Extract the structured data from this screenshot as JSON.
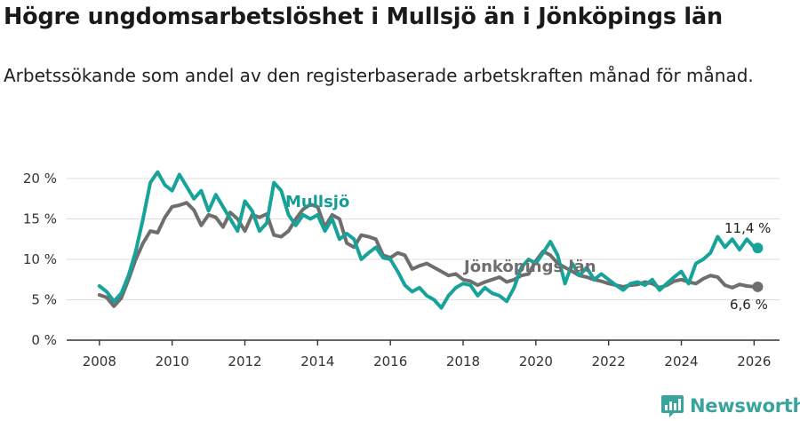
{
  "title": "Högre ungdomsarbetslöshet i Mullsjö än i Jönköpings län",
  "subtitle": "Arbetssökande som andel av den registerbaserade arbetskraften månad för månad.",
  "brand": {
    "name": "Newsworthy"
  },
  "colors": {
    "mullsjo": "#17a399",
    "jonkoping": "#6e6e6e",
    "brand": "#3aa49c"
  },
  "chart_data": {
    "type": "line",
    "title": "Högre ungdomsarbetslöshet i Mullsjö än i Jönköpings län",
    "xlabel": "",
    "ylabel": "",
    "xlim": [
      2007.1,
      2026.7
    ],
    "ylim": [
      0,
      20
    ],
    "grid": true,
    "x_ticks": [
      2008,
      2010,
      2012,
      2014,
      2016,
      2018,
      2020,
      2022,
      2024,
      2026
    ],
    "x_tick_labels": [
      "2008",
      "2010",
      "2012",
      "2014",
      "2016",
      "2018",
      "2020",
      "2022",
      "2024",
      "2026"
    ],
    "y_ticks": [
      0,
      5,
      10,
      15,
      20
    ],
    "y_tick_labels": [
      "0 %",
      "5 %",
      "10 %",
      "15 %",
      "20 %"
    ],
    "series": [
      {
        "name": "Jönköpings län",
        "label": "Jönköpings län",
        "color": "#6e6e6e",
        "end_label": "6,6 %",
        "points": [
          [
            2008.0,
            5.6
          ],
          [
            2008.2,
            5.3
          ],
          [
            2008.4,
            4.2
          ],
          [
            2008.6,
            5.2
          ],
          [
            2008.8,
            7.5
          ],
          [
            2009.0,
            10.0
          ],
          [
            2009.2,
            12.0
          ],
          [
            2009.4,
            13.5
          ],
          [
            2009.6,
            13.3
          ],
          [
            2009.8,
            15.2
          ],
          [
            2010.0,
            16.5
          ],
          [
            2010.2,
            16.7
          ],
          [
            2010.4,
            17.0
          ],
          [
            2010.6,
            16.1
          ],
          [
            2010.8,
            14.2
          ],
          [
            2011.0,
            15.5
          ],
          [
            2011.2,
            15.2
          ],
          [
            2011.4,
            14.0
          ],
          [
            2011.6,
            15.8
          ],
          [
            2011.8,
            15.0
          ],
          [
            2012.0,
            13.5
          ],
          [
            2012.2,
            15.5
          ],
          [
            2012.4,
            15.2
          ],
          [
            2012.6,
            15.6
          ],
          [
            2012.8,
            13.0
          ],
          [
            2013.0,
            12.8
          ],
          [
            2013.2,
            13.5
          ],
          [
            2013.4,
            15.0
          ],
          [
            2013.6,
            16.2
          ],
          [
            2013.8,
            16.8
          ],
          [
            2014.0,
            16.5
          ],
          [
            2014.2,
            14.0
          ],
          [
            2014.4,
            15.5
          ],
          [
            2014.6,
            15.0
          ],
          [
            2014.8,
            12.0
          ],
          [
            2015.0,
            11.5
          ],
          [
            2015.2,
            13.0
          ],
          [
            2015.4,
            12.8
          ],
          [
            2015.6,
            12.5
          ],
          [
            2015.8,
            10.5
          ],
          [
            2016.0,
            10.2
          ],
          [
            2016.2,
            10.8
          ],
          [
            2016.4,
            10.5
          ],
          [
            2016.6,
            8.8
          ],
          [
            2016.8,
            9.2
          ],
          [
            2017.0,
            9.5
          ],
          [
            2017.2,
            9.0
          ],
          [
            2017.4,
            8.5
          ],
          [
            2017.6,
            8.0
          ],
          [
            2017.8,
            8.2
          ],
          [
            2018.0,
            7.5
          ],
          [
            2018.2,
            7.3
          ],
          [
            2018.4,
            6.8
          ],
          [
            2018.6,
            7.2
          ],
          [
            2018.8,
            7.5
          ],
          [
            2019.0,
            7.8
          ],
          [
            2019.2,
            7.2
          ],
          [
            2019.4,
            7.5
          ],
          [
            2019.6,
            8.0
          ],
          [
            2019.8,
            8.2
          ],
          [
            2020.0,
            9.8
          ],
          [
            2020.2,
            11.0
          ],
          [
            2020.4,
            10.5
          ],
          [
            2020.6,
            9.5
          ],
          [
            2020.8,
            9.0
          ],
          [
            2021.0,
            8.5
          ],
          [
            2021.2,
            8.0
          ],
          [
            2021.4,
            7.8
          ],
          [
            2021.6,
            7.5
          ],
          [
            2021.8,
            7.3
          ],
          [
            2022.0,
            7.0
          ],
          [
            2022.2,
            6.8
          ],
          [
            2022.4,
            6.6
          ],
          [
            2022.6,
            6.8
          ],
          [
            2022.8,
            6.9
          ],
          [
            2023.0,
            7.2
          ],
          [
            2023.2,
            7.0
          ],
          [
            2023.4,
            6.5
          ],
          [
            2023.6,
            6.8
          ],
          [
            2023.8,
            7.3
          ],
          [
            2024.0,
            7.5
          ],
          [
            2024.2,
            7.2
          ],
          [
            2024.4,
            7.0
          ],
          [
            2024.6,
            7.6
          ],
          [
            2024.8,
            8.0
          ],
          [
            2025.0,
            7.8
          ],
          [
            2025.2,
            6.8
          ],
          [
            2025.4,
            6.5
          ],
          [
            2025.6,
            6.9
          ],
          [
            2025.8,
            6.7
          ],
          [
            2026.0,
            6.6
          ],
          [
            2026.1,
            6.6
          ]
        ]
      },
      {
        "name": "Mullsjö",
        "label": "Mullsjö",
        "color": "#17a399",
        "end_label": "11,4 %",
        "points": [
          [
            2008.0,
            6.7
          ],
          [
            2008.2,
            6.0
          ],
          [
            2008.4,
            4.8
          ],
          [
            2008.6,
            5.8
          ],
          [
            2008.8,
            8.0
          ],
          [
            2009.0,
            11.0
          ],
          [
            2009.2,
            15.0
          ],
          [
            2009.4,
            19.5
          ],
          [
            2009.6,
            20.8
          ],
          [
            2009.8,
            19.2
          ],
          [
            2010.0,
            18.5
          ],
          [
            2010.2,
            20.5
          ],
          [
            2010.4,
            19.0
          ],
          [
            2010.6,
            17.5
          ],
          [
            2010.8,
            18.5
          ],
          [
            2011.0,
            16.0
          ],
          [
            2011.2,
            18.0
          ],
          [
            2011.4,
            16.5
          ],
          [
            2011.6,
            15.0
          ],
          [
            2011.8,
            13.5
          ],
          [
            2012.0,
            17.2
          ],
          [
            2012.2,
            16.0
          ],
          [
            2012.4,
            13.5
          ],
          [
            2012.6,
            14.5
          ],
          [
            2012.8,
            19.5
          ],
          [
            2013.0,
            18.5
          ],
          [
            2013.2,
            15.5
          ],
          [
            2013.4,
            14.2
          ],
          [
            2013.6,
            15.5
          ],
          [
            2013.8,
            15.0
          ],
          [
            2014.0,
            15.5
          ],
          [
            2014.2,
            13.5
          ],
          [
            2014.4,
            15.0
          ],
          [
            2014.6,
            12.5
          ],
          [
            2014.8,
            13.2
          ],
          [
            2015.0,
            12.5
          ],
          [
            2015.2,
            10.0
          ],
          [
            2015.4,
            10.8
          ],
          [
            2015.6,
            11.5
          ],
          [
            2015.8,
            10.2
          ],
          [
            2016.0,
            10.0
          ],
          [
            2016.2,
            8.5
          ],
          [
            2016.4,
            6.8
          ],
          [
            2016.6,
            6.0
          ],
          [
            2016.8,
            6.5
          ],
          [
            2017.0,
            5.5
          ],
          [
            2017.2,
            5.0
          ],
          [
            2017.4,
            4.0
          ],
          [
            2017.6,
            5.5
          ],
          [
            2017.8,
            6.5
          ],
          [
            2018.0,
            7.0
          ],
          [
            2018.2,
            6.8
          ],
          [
            2018.4,
            5.5
          ],
          [
            2018.6,
            6.5
          ],
          [
            2018.8,
            5.8
          ],
          [
            2019.0,
            5.5
          ],
          [
            2019.2,
            4.8
          ],
          [
            2019.4,
            6.5
          ],
          [
            2019.6,
            9.0
          ],
          [
            2019.8,
            10.0
          ],
          [
            2020.0,
            9.5
          ],
          [
            2020.2,
            10.8
          ],
          [
            2020.4,
            12.2
          ],
          [
            2020.6,
            10.5
          ],
          [
            2020.8,
            7.0
          ],
          [
            2021.0,
            9.5
          ],
          [
            2021.2,
            8.0
          ],
          [
            2021.4,
            9.0
          ],
          [
            2021.6,
            7.5
          ],
          [
            2021.8,
            8.2
          ],
          [
            2022.0,
            7.5
          ],
          [
            2022.2,
            6.8
          ],
          [
            2022.4,
            6.2
          ],
          [
            2022.6,
            7.0
          ],
          [
            2022.8,
            7.2
          ],
          [
            2023.0,
            6.8
          ],
          [
            2023.2,
            7.5
          ],
          [
            2023.4,
            6.2
          ],
          [
            2023.6,
            7.0
          ],
          [
            2023.8,
            7.8
          ],
          [
            2024.0,
            8.5
          ],
          [
            2024.2,
            7.0
          ],
          [
            2024.4,
            9.5
          ],
          [
            2024.6,
            10.0
          ],
          [
            2024.8,
            10.8
          ],
          [
            2025.0,
            12.8
          ],
          [
            2025.2,
            11.5
          ],
          [
            2025.4,
            12.5
          ],
          [
            2025.6,
            11.2
          ],
          [
            2025.8,
            12.5
          ],
          [
            2026.0,
            11.5
          ],
          [
            2026.1,
            11.4
          ]
        ]
      }
    ]
  }
}
